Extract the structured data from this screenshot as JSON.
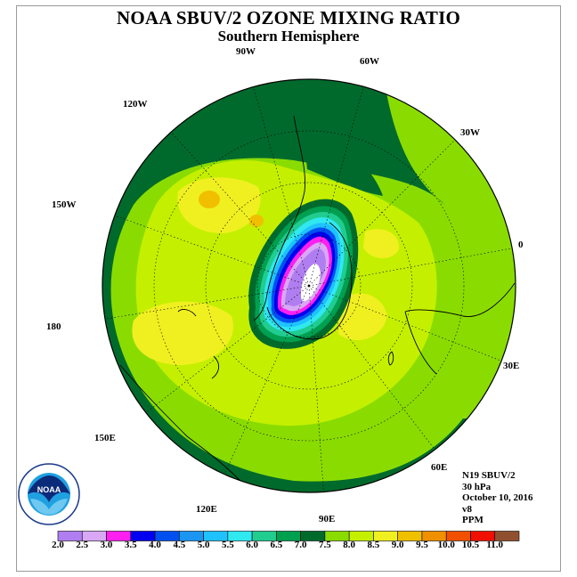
{
  "title": "NOAA SBUV/2 OZONE MIXING RATIO",
  "subtitle": "Southern Hemisphere",
  "longitude_labels": [
    "90W",
    "60W",
    "30W",
    "0",
    "30E",
    "60E",
    "90E",
    "120E",
    "150E",
    "180",
    "150W",
    "120W"
  ],
  "info": {
    "satellite": "N19 SBUV/2",
    "level": "30 hPa",
    "date": "October 10, 2016",
    "version": "v8",
    "units": "PPM"
  },
  "logo_text": "NOAA",
  "colorbar": {
    "labels": [
      "2.0",
      "2.5",
      "3.0",
      "3.5",
      "4.0",
      "4.5",
      "5.0",
      "5.5",
      "6.0",
      "6.5",
      "7.0",
      "7.5",
      "8.0",
      "8.5",
      "9.0",
      "9.5",
      "10.0",
      "10.5",
      "11.0"
    ],
    "colors": [
      "#b07ef0",
      "#d8a8f6",
      "#ff1ff0",
      "#0000f0",
      "#0050f0",
      "#1a96f2",
      "#1fc2ff",
      "#30e8f0",
      "#20cc90",
      "#00a050",
      "#006a2c",
      "#8adc00",
      "#c4f000",
      "#f0f020",
      "#f0c000",
      "#f09000",
      "#f05000",
      "#f01000",
      "#905030"
    ]
  },
  "map_colors": {
    "ppm_7_0": "#006a2c",
    "ppm_7_5": "#8adc00",
    "ppm_8_0": "#c4f000",
    "ppm_8_5": "#f0f020",
    "ppm_9_0": "#f0c000",
    "ppm_6_5": "#00a050",
    "ppm_6_0": "#20cc90",
    "ppm_5_5": "#30e8f0",
    "ppm_5_0": "#1fc2ff",
    "ppm_4_0": "#0050f0",
    "ppm_3_5": "#0000f0",
    "ppm_3_0": "#ff1ff0",
    "ppm_2_5": "#d8a8f6",
    "ppm_2_0": "#b07ef0",
    "ppm_below_2_0": "#ffffff"
  }
}
